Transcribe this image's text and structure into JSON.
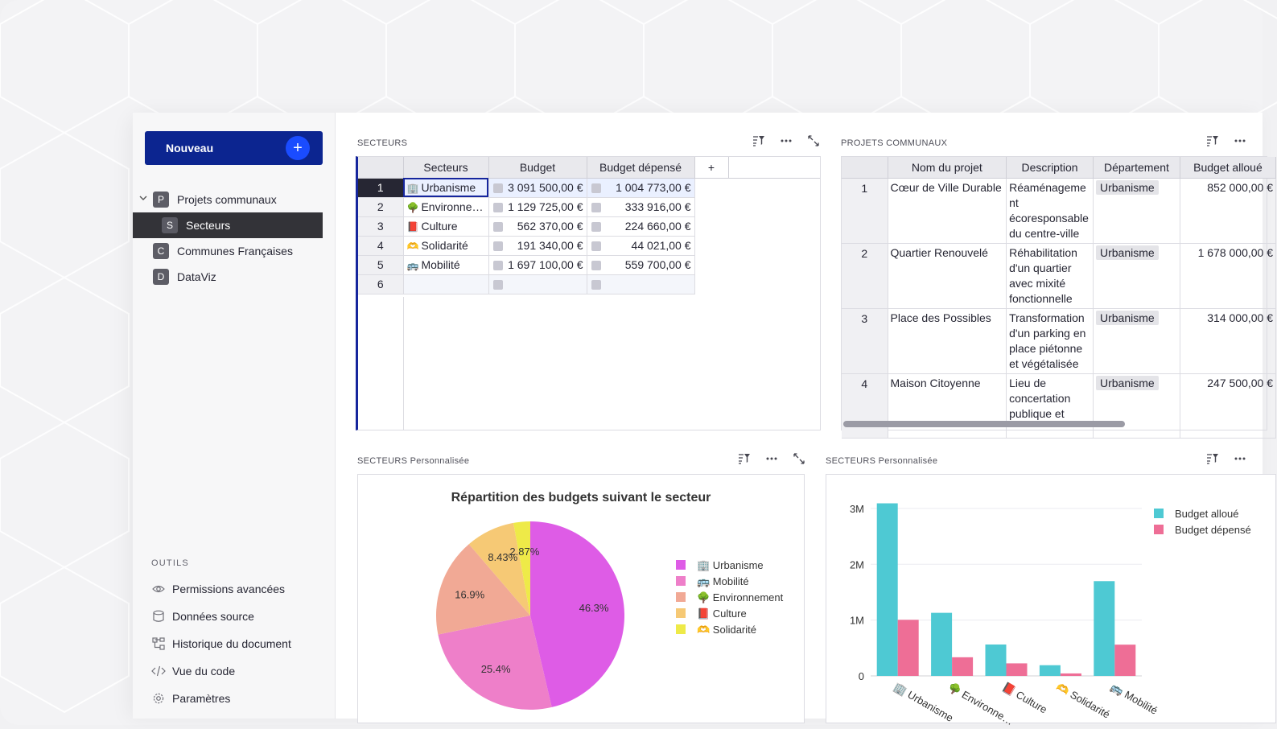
{
  "sidebar": {
    "new_label": "Nouveau",
    "new_plus": "+",
    "pages": [
      {
        "letter": "P",
        "label": "Projets communaux"
      },
      {
        "letter": "S",
        "label": "Secteurs"
      },
      {
        "letter": "C",
        "label": "Communes Françaises"
      },
      {
        "letter": "D",
        "label": "DataViz"
      }
    ],
    "tools_title": "OUTILS",
    "tools": [
      {
        "icon": "eye-icon",
        "label": "Permissions avancées"
      },
      {
        "icon": "database-icon",
        "label": "Données source"
      },
      {
        "icon": "history-icon",
        "label": "Historique du document"
      },
      {
        "icon": "code-icon",
        "label": "Vue du code"
      },
      {
        "icon": "gear-icon",
        "label": "Paramètres"
      }
    ]
  },
  "secteurs": {
    "title": "SECTEURS",
    "headers": [
      "Secteurs",
      "Budget",
      "Budget dépensé",
      "+"
    ],
    "rows": [
      {
        "n": "1",
        "emoji": "🏢",
        "sector": "Urbanisme",
        "budget": "3 091 500,00 €",
        "spent": "1 004 773,00 €"
      },
      {
        "n": "2",
        "emoji": "🌳",
        "sector": "Environne…",
        "budget": "1 129 725,00 €",
        "spent": "333 916,00 €"
      },
      {
        "n": "3",
        "emoji": "📕",
        "sector": "Culture",
        "budget": "562 370,00 €",
        "spent": "224 660,00 €"
      },
      {
        "n": "4",
        "emoji": "🫶",
        "sector": "Solidarité",
        "budget": "191 340,00 €",
        "spent": "44 021,00 €"
      },
      {
        "n": "5",
        "emoji": "🚌",
        "sector": "Mobilité",
        "budget": "1 697 100,00 €",
        "spent": "559 700,00 €"
      },
      {
        "n": "6",
        "emoji": "",
        "sector": "",
        "budget": "",
        "spent": ""
      }
    ]
  },
  "projets": {
    "title": "PROJETS COMMUNAUX",
    "headers": [
      "Nom du projet",
      "Description",
      "Département",
      "Budget alloué"
    ],
    "rows": [
      {
        "n": "1",
        "name": "Cœur de Ville Durable",
        "desc": "Réaménageme nt écoresponsable du centre-ville",
        "dept": "Urbanisme",
        "budget": "852 000,00 €"
      },
      {
        "n": "2",
        "name": "Quartier Renouvelé",
        "desc": "Réhabilitation d'un quartier avec mixité fonctionnelle",
        "dept": "Urbanisme",
        "budget": "1 678 000,00 €"
      },
      {
        "n": "3",
        "name": "Place des Possibles",
        "desc": "Transformation d'un parking en place piétonne et végétalisée",
        "dept": "Urbanisme",
        "budget": "314 000,00 €"
      },
      {
        "n": "4",
        "name": "Maison Citoyenne",
        "desc": "Lieu de concertation publique et",
        "dept": "Urbanisme",
        "budget": "247 500,00 €"
      }
    ]
  },
  "pie_widget": {
    "title": "SECTEURS Personnalisée"
  },
  "bar_widget": {
    "title": "SECTEURS Personnalisée"
  },
  "chart_data": [
    {
      "type": "pie",
      "title": "Répartition des budgets suivant le secteur",
      "labels": [
        "🏢 Urbanisme",
        "🚌 Mobilité",
        "🌳 Environnement",
        "📕 Culture",
        "🫶 Solidarité"
      ],
      "values": [
        3091500,
        1697100,
        1129725,
        562370,
        191340
      ],
      "percent_labels": [
        "46.3%",
        "25.4%",
        "16.9%",
        "8.43%",
        "2.87%"
      ],
      "colors": [
        "#de5ce6",
        "#ee7fc9",
        "#f1a995",
        "#f6c975",
        "#eeea48"
      ],
      "legend": "right"
    },
    {
      "type": "bar",
      "categories": [
        "🏢 Urbanisme",
        "🌳 Environne…",
        "📕 Culture",
        "🫶 Solidarité",
        "🚌 Mobilité"
      ],
      "series": [
        {
          "name": "Budget alloué",
          "values": [
            3091500,
            1129725,
            562370,
            191340,
            1697100
          ],
          "color": "#4ec9d3"
        },
        {
          "name": "Budget dépensé",
          "values": [
            1004773,
            333916,
            224660,
            44021,
            559700
          ],
          "color": "#ee6e96"
        }
      ],
      "y_ticks": [
        "0",
        "1M",
        "2M",
        "3M"
      ],
      "ylim": [
        0,
        3200000
      ],
      "legend": "top-right",
      "grid": true
    }
  ]
}
